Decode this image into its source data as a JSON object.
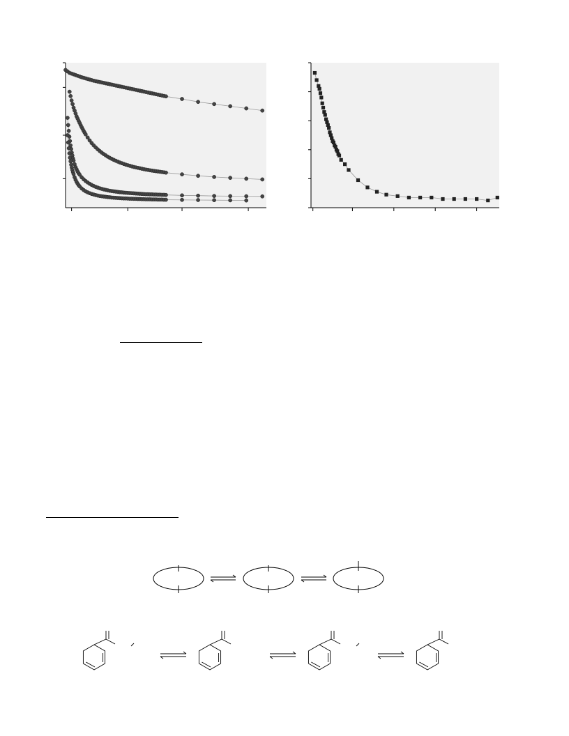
{
  "chart_data": [
    {
      "type": "scatter",
      "title": "",
      "xlabel": "",
      "ylabel": "",
      "grid": false,
      "xlim": [
        0,
        1.0
      ],
      "ylim": [
        0,
        1.0
      ],
      "series": [
        {
          "x": [
            0.0,
            0.01,
            0.02,
            0.03,
            0.04,
            0.05,
            0.06,
            0.07,
            0.08,
            0.09,
            0.1,
            0.11,
            0.12,
            0.13,
            0.14,
            0.15,
            0.16,
            0.17,
            0.18,
            0.19,
            0.2,
            0.21,
            0.22,
            0.23,
            0.24,
            0.25,
            0.26,
            0.27,
            0.28,
            0.29,
            0.3,
            0.31,
            0.32,
            0.33,
            0.34,
            0.35,
            0.36,
            0.37,
            0.38,
            0.39,
            0.4,
            0.41,
            0.42,
            0.43,
            0.44,
            0.45,
            0.46,
            0.47,
            0.48,
            0.49,
            0.5,
            0.58,
            0.66,
            0.74,
            0.82,
            0.9,
            0.98
          ],
          "y": [
            0.95,
            0.94,
            0.93,
            0.925,
            0.92,
            0.915,
            0.91,
            0.905,
            0.9,
            0.896,
            0.892,
            0.888,
            0.884,
            0.88,
            0.876,
            0.873,
            0.87,
            0.867,
            0.864,
            0.861,
            0.858,
            0.855,
            0.852,
            0.849,
            0.846,
            0.843,
            0.84,
            0.837,
            0.834,
            0.831,
            0.828,
            0.825,
            0.822,
            0.819,
            0.816,
            0.813,
            0.81,
            0.807,
            0.804,
            0.801,
            0.798,
            0.795,
            0.792,
            0.789,
            0.786,
            0.783,
            0.78,
            0.777,
            0.774,
            0.771,
            0.768,
            0.75,
            0.73,
            0.715,
            0.7,
            0.685,
            0.67
          ]
        },
        {
          "x": [
            0.02,
            0.025,
            0.03,
            0.035,
            0.04,
            0.045,
            0.05,
            0.055,
            0.06,
            0.065,
            0.07,
            0.075,
            0.08,
            0.085,
            0.09,
            0.095,
            0.1,
            0.11,
            0.12,
            0.13,
            0.14,
            0.15,
            0.16,
            0.17,
            0.18,
            0.19,
            0.2,
            0.21,
            0.22,
            0.23,
            0.24,
            0.25,
            0.26,
            0.27,
            0.28,
            0.29,
            0.3,
            0.31,
            0.32,
            0.33,
            0.34,
            0.35,
            0.36,
            0.37,
            0.38,
            0.39,
            0.4,
            0.41,
            0.42,
            0.43,
            0.44,
            0.45,
            0.46,
            0.47,
            0.48,
            0.49,
            0.5,
            0.58,
            0.66,
            0.74,
            0.82,
            0.9,
            0.98
          ],
          "y": [
            0.8,
            0.77,
            0.74,
            0.715,
            0.69,
            0.67,
            0.65,
            0.63,
            0.615,
            0.6,
            0.585,
            0.57,
            0.556,
            0.543,
            0.53,
            0.518,
            0.506,
            0.484,
            0.464,
            0.446,
            0.43,
            0.416,
            0.403,
            0.391,
            0.38,
            0.37,
            0.361,
            0.352,
            0.344,
            0.337,
            0.33,
            0.324,
            0.318,
            0.312,
            0.307,
            0.302,
            0.297,
            0.293,
            0.289,
            0.285,
            0.281,
            0.278,
            0.275,
            0.272,
            0.269,
            0.266,
            0.263,
            0.261,
            0.258,
            0.256,
            0.254,
            0.252,
            0.25,
            0.248,
            0.246,
            0.244,
            0.242,
            0.23,
            0.22,
            0.212,
            0.206,
            0.2,
            0.195
          ]
        },
        {
          "x": [
            0.01,
            0.013,
            0.016,
            0.019,
            0.022,
            0.025,
            0.028,
            0.031,
            0.034,
            0.037,
            0.04,
            0.045,
            0.05,
            0.055,
            0.06,
            0.065,
            0.07,
            0.08,
            0.09,
            0.1,
            0.11,
            0.12,
            0.13,
            0.14,
            0.15,
            0.16,
            0.17,
            0.18,
            0.19,
            0.2,
            0.21,
            0.22,
            0.23,
            0.24,
            0.25,
            0.26,
            0.27,
            0.28,
            0.29,
            0.3,
            0.31,
            0.32,
            0.33,
            0.34,
            0.35,
            0.36,
            0.37,
            0.38,
            0.39,
            0.4,
            0.41,
            0.42,
            0.43,
            0.44,
            0.45,
            0.46,
            0.47,
            0.48,
            0.49,
            0.5,
            0.58,
            0.66,
            0.74,
            0.82,
            0.9,
            0.98
          ],
          "y": [
            0.62,
            0.57,
            0.53,
            0.49,
            0.46,
            0.43,
            0.405,
            0.38,
            0.36,
            0.34,
            0.325,
            0.3,
            0.28,
            0.265,
            0.25,
            0.238,
            0.228,
            0.21,
            0.196,
            0.184,
            0.174,
            0.165,
            0.157,
            0.15,
            0.144,
            0.139,
            0.134,
            0.13,
            0.126,
            0.123,
            0.12,
            0.117,
            0.115,
            0.113,
            0.111,
            0.109,
            0.107,
            0.106,
            0.104,
            0.103,
            0.102,
            0.101,
            0.1,
            0.099,
            0.098,
            0.097,
            0.096,
            0.095,
            0.094,
            0.093,
            0.093,
            0.092,
            0.092,
            0.091,
            0.091,
            0.09,
            0.09,
            0.089,
            0.089,
            0.088,
            0.085,
            0.083,
            0.081,
            0.08,
            0.079,
            0.078
          ]
        },
        {
          "x": [
            0.01,
            0.013,
            0.016,
            0.019,
            0.022,
            0.025,
            0.028,
            0.031,
            0.034,
            0.037,
            0.04,
            0.045,
            0.05,
            0.055,
            0.06,
            0.065,
            0.07,
            0.08,
            0.09,
            0.1,
            0.11,
            0.12,
            0.13,
            0.14,
            0.15,
            0.16,
            0.17,
            0.18,
            0.19,
            0.2,
            0.21,
            0.22,
            0.23,
            0.24,
            0.25,
            0.26,
            0.27,
            0.28,
            0.29,
            0.3,
            0.31,
            0.32,
            0.33,
            0.34,
            0.35,
            0.36,
            0.37,
            0.38,
            0.39,
            0.4,
            0.41,
            0.42,
            0.43,
            0.44,
            0.45,
            0.46,
            0.47,
            0.48,
            0.49,
            0.5,
            0.58,
            0.66,
            0.74,
            0.82,
            0.9
          ],
          "y": [
            0.5,
            0.45,
            0.41,
            0.375,
            0.345,
            0.32,
            0.297,
            0.277,
            0.26,
            0.245,
            0.232,
            0.21,
            0.192,
            0.178,
            0.166,
            0.156,
            0.147,
            0.133,
            0.122,
            0.113,
            0.106,
            0.1,
            0.095,
            0.091,
            0.087,
            0.084,
            0.081,
            0.079,
            0.077,
            0.075,
            0.073,
            0.072,
            0.07,
            0.069,
            0.068,
            0.067,
            0.066,
            0.065,
            0.064,
            0.064,
            0.063,
            0.062,
            0.062,
            0.061,
            0.061,
            0.06,
            0.06,
            0.059,
            0.059,
            0.058,
            0.058,
            0.058,
            0.057,
            0.057,
            0.057,
            0.056,
            0.056,
            0.056,
            0.055,
            0.055,
            0.054,
            0.053,
            0.052,
            0.051,
            0.05
          ]
        }
      ]
    },
    {
      "type": "scatter",
      "title": "",
      "xlabel": "",
      "ylabel": "",
      "grid": false,
      "xlim": [
        0,
        1.0
      ],
      "ylim": [
        0,
        1.0
      ],
      "series": [
        {
          "x": [
            0.02,
            0.03,
            0.04,
            0.045,
            0.05,
            0.055,
            0.06,
            0.065,
            0.07,
            0.075,
            0.08,
            0.085,
            0.09,
            0.095,
            0.1,
            0.105,
            0.11,
            0.115,
            0.12,
            0.125,
            0.13,
            0.135,
            0.14,
            0.145,
            0.15,
            0.16,
            0.18,
            0.2,
            0.25,
            0.3,
            0.35,
            0.4,
            0.46,
            0.52,
            0.58,
            0.64,
            0.7,
            0.76,
            0.82,
            0.88,
            0.94,
            0.99
          ],
          "y": [
            0.93,
            0.88,
            0.84,
            0.82,
            0.79,
            0.76,
            0.72,
            0.69,
            0.66,
            0.64,
            0.61,
            0.59,
            0.57,
            0.55,
            0.52,
            0.5,
            0.48,
            0.46,
            0.45,
            0.43,
            0.42,
            0.4,
            0.39,
            0.37,
            0.36,
            0.33,
            0.3,
            0.26,
            0.19,
            0.14,
            0.11,
            0.09,
            0.08,
            0.07,
            0.07,
            0.07,
            0.06,
            0.06,
            0.06,
            0.06,
            0.05,
            0.07
          ]
        }
      ]
    }
  ]
}
